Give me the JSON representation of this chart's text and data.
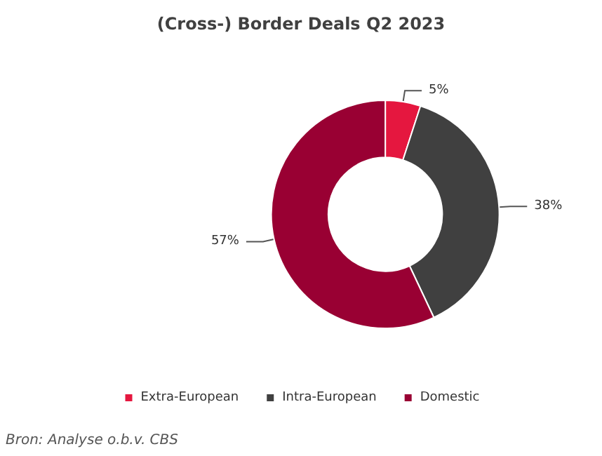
{
  "chart_data": {
    "type": "donut",
    "title": "(Cross-) Border Deals Q2 2023",
    "categories": [
      "Extra-European",
      "Intra-European",
      "Domestic"
    ],
    "values": [
      5,
      38,
      57
    ],
    "value_labels": [
      "5%",
      "38%",
      "57%"
    ],
    "colors": [
      "#e5173f",
      "#404040",
      "#990033"
    ],
    "legend": "bottom",
    "annotations": [
      "Bron: Analyse o.b.v. CBS"
    ]
  }
}
